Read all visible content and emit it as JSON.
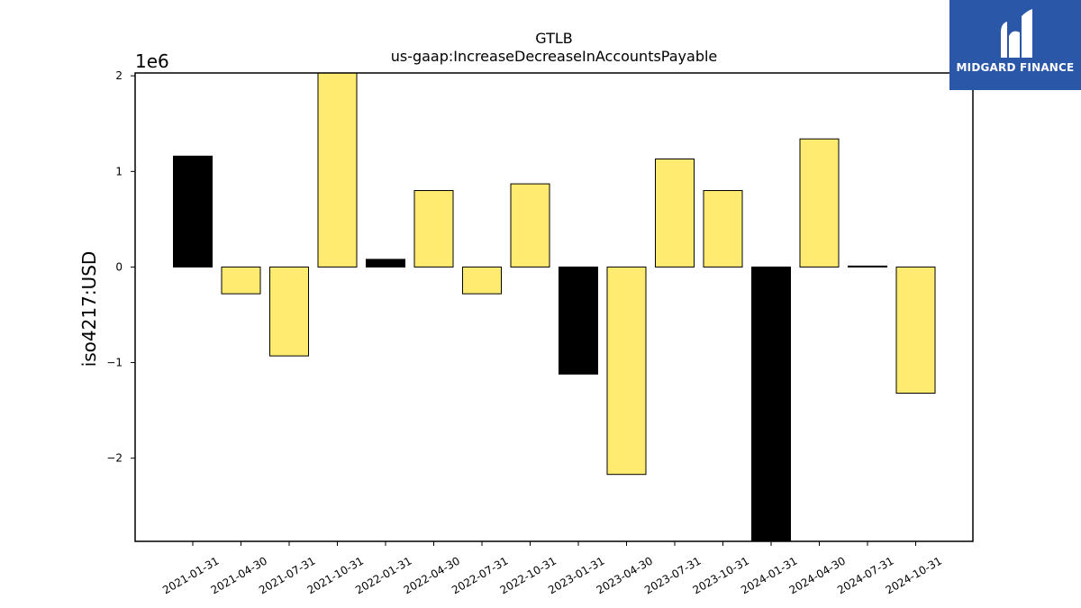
{
  "chart_data": {
    "type": "bar",
    "title": "GTLB",
    "subtitle": "us-gaap:IncreaseDecreaseInAccountsPayable",
    "xlabel": "",
    "ylabel": "iso4217:USD",
    "y_offset_text": "1e6",
    "ylim": [
      -2.87,
      2.03
    ],
    "yticks": [
      -2,
      -1,
      0,
      1,
      2
    ],
    "ytick_labels": [
      "−2",
      "−1",
      "0",
      "1",
      "2"
    ],
    "grid": false,
    "categories": [
      "2021-01-31",
      "2021-04-30",
      "2021-07-31",
      "2021-10-31",
      "2022-01-31",
      "2022-04-30",
      "2022-07-31",
      "2022-10-31",
      "2023-01-31",
      "2023-04-30",
      "2023-07-31",
      "2023-10-31",
      "2024-01-31",
      "2024-04-30",
      "2024-07-31",
      "2024-10-31"
    ],
    "values": [
      1.16,
      -0.28,
      -0.93,
      2.07,
      0.08,
      0.8,
      -0.28,
      0.87,
      -1.12,
      -2.17,
      1.13,
      0.8,
      -2.9,
      1.34,
      0.01,
      -1.32
    ],
    "value_unit_multiplier": 1000000,
    "bar_colors": [
      "#000000",
      "#ffeb70",
      "#ffeb70",
      "#ffeb70",
      "#000000",
      "#ffeb70",
      "#ffeb70",
      "#ffeb70",
      "#000000",
      "#ffeb70",
      "#ffeb70",
      "#ffeb70",
      "#000000",
      "#ffeb70",
      "#000000",
      "#ffeb70"
    ]
  },
  "logo": {
    "text": "MIDGARD FINANCE",
    "background": "#2b57a9"
  }
}
